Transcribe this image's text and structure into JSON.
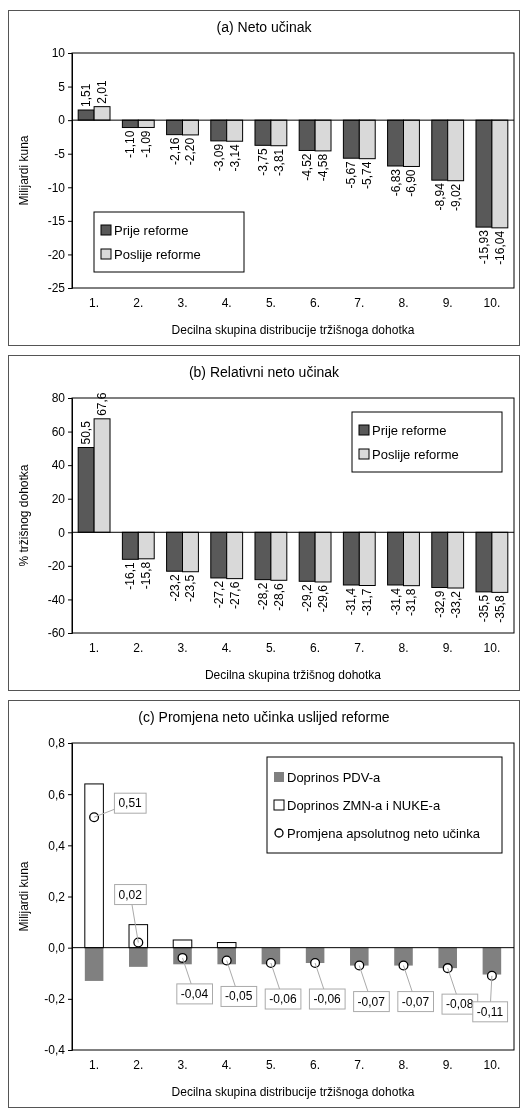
{
  "chart_data": [
    {
      "type": "bar",
      "title": "(a) Neto učinak",
      "xlabel": "Decilna skupina distribucije tržišnoga dohotka",
      "ylabel": "Milijardi kuna",
      "categories": [
        "1.",
        "2.",
        "3.",
        "4.",
        "5.",
        "6.",
        "7.",
        "8.",
        "9.",
        "10."
      ],
      "ylim": [
        -25,
        10
      ],
      "yticks": [
        -25,
        -20,
        -15,
        -10,
        -5,
        0,
        5,
        10
      ],
      "legend": "bottom left",
      "series": [
        {
          "name": "Prije reforme",
          "color": "#595959",
          "values": [
            1.51,
            -1.1,
            -2.16,
            -3.09,
            -3.75,
            -4.52,
            -5.67,
            -6.83,
            -8.94,
            -15.93
          ],
          "value_labels": [
            "1,51",
            "-1,10",
            "-2,16",
            "-3,09",
            "-3,75",
            "-4,52",
            "-5,67",
            "-6,83",
            "-8,94",
            "-15,93"
          ]
        },
        {
          "name": "Poslije reforme",
          "color": "#d9d9d9",
          "values": [
            2.01,
            -1.09,
            -2.2,
            -3.14,
            -3.81,
            -4.58,
            -5.74,
            -6.9,
            -9.02,
            -16.04
          ],
          "value_labels": [
            "2,01",
            "-1,09",
            "-2,20",
            "-3,14",
            "-3,81",
            "-4,58",
            "-5,74",
            "-6,90",
            "-9,02",
            "-16,04"
          ]
        }
      ]
    },
    {
      "type": "bar",
      "title": "(b) Relativni neto učinak",
      "xlabel": "Decilna skupina tržišnog dohotka",
      "ylabel": "% tržišnog dohotka",
      "categories": [
        "1.",
        "2.",
        "3.",
        "4.",
        "5.",
        "6.",
        "7.",
        "8.",
        "9.",
        "10."
      ],
      "ylim": [
        -60,
        80
      ],
      "yticks": [
        -60,
        -40,
        -20,
        0,
        20,
        40,
        60,
        80
      ],
      "legend": "top right",
      "series": [
        {
          "name": "Prije reforme",
          "color": "#595959",
          "values": [
            50.5,
            -16.1,
            -23.2,
            -27.2,
            -28.2,
            -29.2,
            -31.4,
            -31.4,
            -32.9,
            -35.5
          ],
          "value_labels": [
            "50,5",
            "-16,1",
            "-23,2",
            "-27,2",
            "-28,2",
            "-29,2",
            "-31,4",
            "-31,4",
            "-32,9",
            "-35,5"
          ]
        },
        {
          "name": "Poslije reforme",
          "color": "#d9d9d9",
          "values": [
            67.6,
            -15.8,
            -23.5,
            -27.6,
            -28.6,
            -29.6,
            -31.7,
            -31.8,
            -33.2,
            -35.8
          ],
          "value_labels": [
            "67,6",
            "-15,8",
            "-23,5",
            "-27,6",
            "-28,6",
            "-29,6",
            "-31,7",
            "-31,8",
            "-33,2",
            "-35,8"
          ]
        }
      ]
    },
    {
      "type": "bar",
      "title": "(c) Promjena neto učinka uslijed reforme",
      "xlabel": "Decilna skupina distribucije tržišnoga dohotka",
      "ylabel": "Milijardi kuna",
      "categories": [
        "1.",
        "2.",
        "3.",
        "4.",
        "5.",
        "6.",
        "7.",
        "8.",
        "9.",
        "10."
      ],
      "ylim": [
        -0.4,
        0.8
      ],
      "yticks": [
        {
          "value": -0.4,
          "label": "-0,4"
        },
        {
          "value": -0.2,
          "label": "-0,2"
        },
        {
          "value": 0,
          "label": "0,0"
        },
        {
          "value": 0.2,
          "label": "0,2"
        },
        {
          "value": 0.4,
          "label": "0,4"
        },
        {
          "value": 0.6,
          "label": "0,6"
        },
        {
          "value": 0.8,
          "label": "0,8"
        }
      ],
      "legend": "top right",
      "stacked": true,
      "marker": "circle",
      "series": [
        {
          "name": "Doprinos PDV-a",
          "color": "#808080",
          "values": [
            -0.13,
            -0.075,
            -0.065,
            -0.065,
            -0.065,
            -0.06,
            -0.07,
            -0.07,
            -0.08,
            -0.105
          ]
        },
        {
          "name": "Doprinos ZMN-a i NUKE-a",
          "color": "#ffffff",
          "values": [
            0.64,
            0.09,
            0.03,
            0.02,
            null,
            null,
            null,
            0,
            0,
            0
          ]
        },
        {
          "name": "Promjena apsolutnog neto učinka",
          "type": "scatter",
          "color": "#ffffff",
          "x": [
            "1.",
            "2.",
            "3.",
            "4.",
            "5.",
            "6.",
            "7.",
            "8.",
            "9.",
            "10."
          ],
          "values": [
            0.51,
            0.02,
            -0.04,
            -0.05,
            -0.06,
            -0.06,
            -0.07,
            -0.07,
            -0.08,
            -0.11
          ],
          "value_labels": [
            "0,51",
            "0,02",
            "-0,04",
            "-0,05",
            "-0,06",
            "-0,06",
            "-0,07",
            "-0,07",
            "-0,08",
            "-0,11"
          ]
        }
      ]
    }
  ]
}
